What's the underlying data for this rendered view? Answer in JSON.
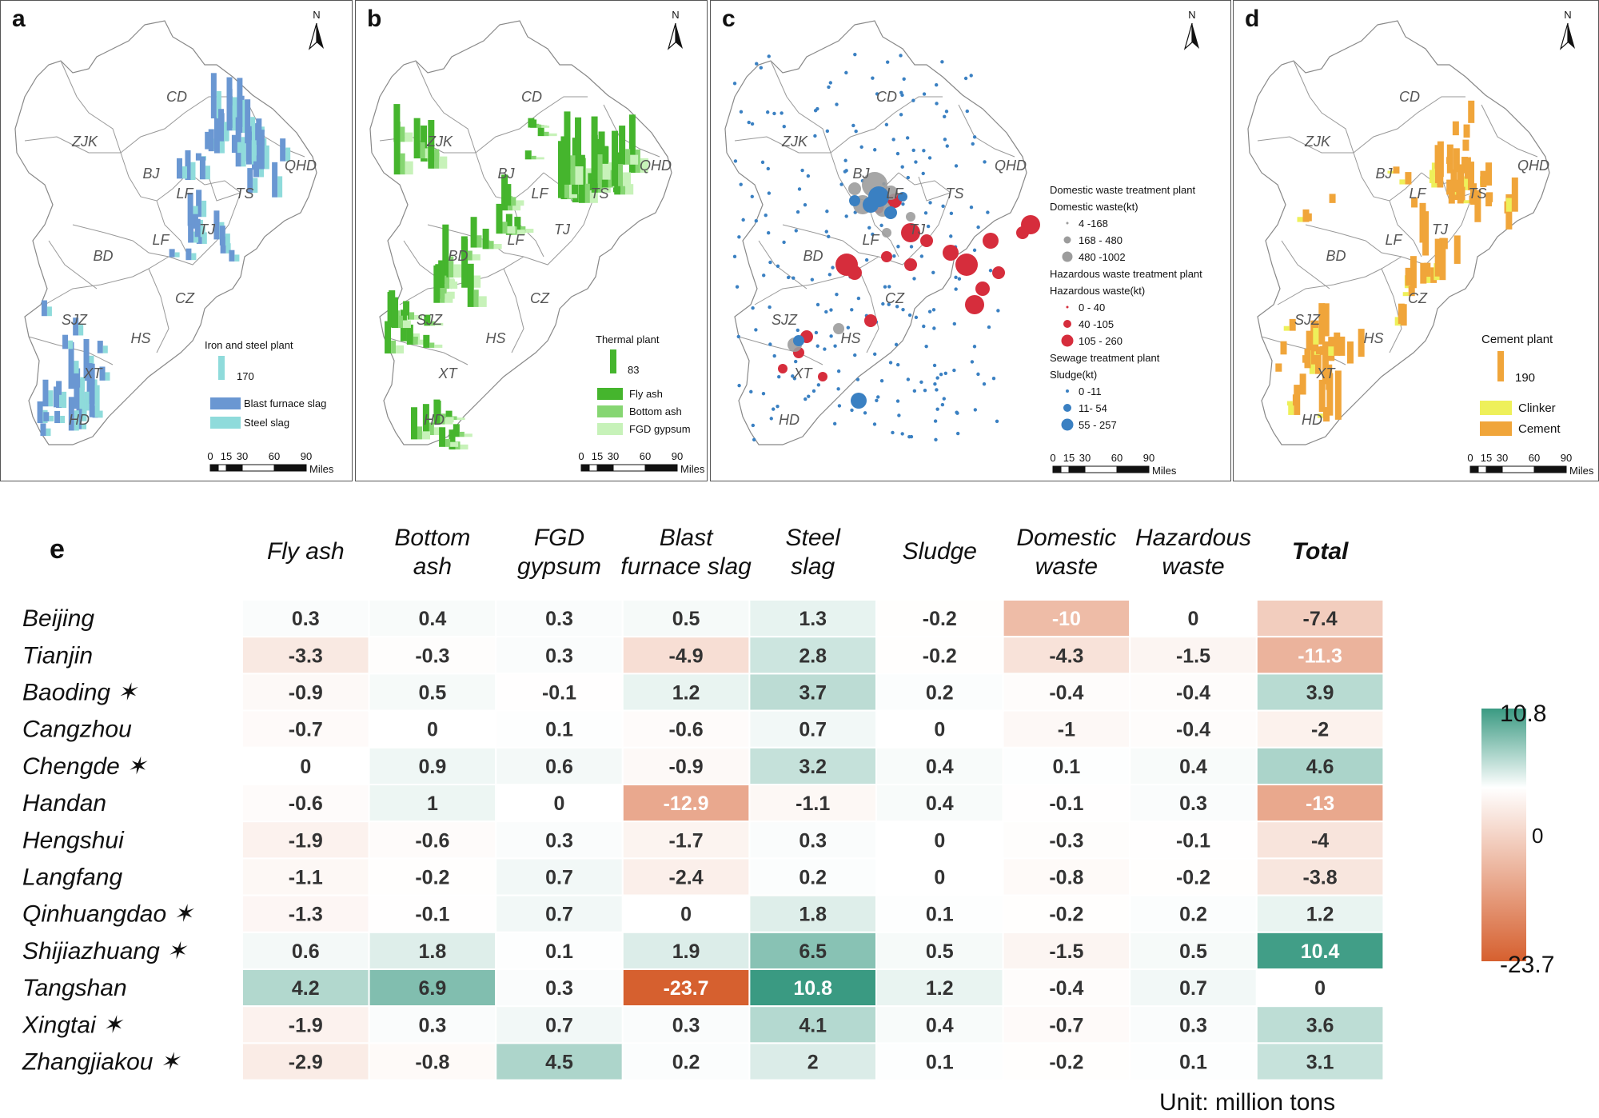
{
  "panels": [
    {
      "id": "a",
      "letter": "a",
      "north": "N",
      "cities": [
        "CD",
        "ZJK",
        "QHD",
        "BJ",
        "LF",
        "TS",
        "TJ",
        "LF",
        "BD",
        "CZ",
        "SJZ",
        "HS",
        "XT",
        "HD"
      ],
      "legend": {
        "title": "Iron and steel plant",
        "scale_value": "170",
        "items": [
          "Blast furnace slag",
          "Steel slag"
        ]
      },
      "scalebar": {
        "ticks": [
          "0",
          "15",
          "30",
          "60",
          "90"
        ],
        "unit": "Miles"
      }
    },
    {
      "id": "b",
      "letter": "b",
      "north": "N",
      "cities": [
        "CD",
        "ZJK",
        "QHD",
        "BJ",
        "LF",
        "TS",
        "TJ",
        "LF",
        "BD",
        "CZ",
        "SJZ",
        "HS",
        "XT",
        "HD"
      ],
      "legend": {
        "title": "Thermal plant",
        "scale_value": "83",
        "items": [
          "Fly ash",
          "Bottom ash",
          "FGD  gypsum"
        ]
      },
      "scalebar": {
        "ticks": [
          "0",
          "15",
          "30",
          "60",
          "90"
        ],
        "unit": "Miles"
      }
    },
    {
      "id": "c",
      "letter": "c",
      "north": "N",
      "cities": [
        "CD",
        "ZJK",
        "QHD",
        "BJ",
        "LF",
        "TS",
        "TJ",
        "LF",
        "BD",
        "CZ",
        "SJZ",
        "HS",
        "XT",
        "HD"
      ],
      "legend": {
        "groups": [
          {
            "title": "Domestic waste treatment plant",
            "subtitle": "Domestic waste(kt)",
            "items": [
              "4 -168",
              "168 - 480",
              "480 -1002"
            ]
          },
          {
            "title": "Hazardous waste treatment plant",
            "subtitle": "Hazardous waste(kt)",
            "items": [
              "0 - 40",
              "40 -105",
              "105 - 260"
            ]
          },
          {
            "title": "Sewage treatment plant",
            "subtitle": "Sludge(kt)",
            "items": [
              "0 -11",
              "11- 54",
              "55 - 257"
            ]
          }
        ]
      },
      "scalebar": {
        "ticks": [
          "0",
          "15",
          "30",
          "60",
          "90"
        ],
        "unit": "Miles"
      }
    },
    {
      "id": "d",
      "letter": "d",
      "north": "N",
      "cities": [
        "CD",
        "ZJK",
        "QHD",
        "BJ",
        "LF",
        "TS",
        "TJ",
        "LF",
        "BD",
        "CZ",
        "SJZ",
        "HS",
        "XT",
        "HD"
      ],
      "legend": {
        "title": "Cement plant",
        "scale_value": "190",
        "items": [
          "Clinker",
          "Cement"
        ]
      },
      "scalebar": {
        "ticks": [
          "0",
          "15",
          "30",
          "60",
          "90"
        ],
        "unit": "Miles"
      }
    }
  ],
  "chart_data": {
    "type": "heatmap",
    "panel_label": "e",
    "columns": [
      "Fly ash",
      "Bottom ash",
      "FGD gypsum",
      "Blast furnace slag",
      "Steel slag",
      "Sludge",
      "Domestic waste",
      "Hazardous waste",
      "Total"
    ],
    "column_lines": [
      [
        "Fly ash"
      ],
      [
        "Bottom",
        "ash"
      ],
      [
        "FGD",
        "gypsum"
      ],
      [
        "Blast",
        "furnace slag"
      ],
      [
        "Steel",
        "slag"
      ],
      [
        "Sludge"
      ],
      [
        "Domestic",
        "waste"
      ],
      [
        "Hazardous",
        "waste"
      ],
      [
        "Total"
      ]
    ],
    "rows": [
      "Beijing",
      "Tianjin",
      "Baoding ✶",
      "Cangzhou",
      "Chengde ✶",
      "Handan",
      "Hengshui",
      "Langfang",
      "Qinhuangdao ✶",
      "Shijiazhuang ✶",
      "Tangshan",
      "Xingtai ✶",
      "Zhangjiakou ✶"
    ],
    "values": [
      [
        0.3,
        0.4,
        0.3,
        0.5,
        1.3,
        -0.2,
        -10,
        0,
        -7.4
      ],
      [
        -3.3,
        -0.3,
        0.3,
        -4.9,
        2.8,
        -0.2,
        -4.3,
        -1.5,
        -11.3
      ],
      [
        -0.9,
        0.5,
        -0.1,
        1.2,
        3.7,
        0.2,
        -0.4,
        -0.4,
        3.9
      ],
      [
        -0.7,
        0,
        0.1,
        -0.6,
        0.7,
        0,
        -1,
        -0.4,
        -2
      ],
      [
        0,
        0.9,
        0.6,
        -0.9,
        3.2,
        0.4,
        0.1,
        0.4,
        4.6
      ],
      [
        -0.6,
        1,
        0,
        -12.9,
        -1.1,
        0.4,
        -0.1,
        0.3,
        -13
      ],
      [
        -1.9,
        -0.6,
        0.3,
        -1.7,
        0.3,
        0,
        -0.3,
        -0.1,
        -4
      ],
      [
        -1.1,
        -0.2,
        0.7,
        -2.4,
        0.2,
        0,
        -0.8,
        -0.2,
        -3.8
      ],
      [
        -1.3,
        -0.1,
        0.7,
        0,
        1.8,
        0.1,
        -0.2,
        0.2,
        1.2
      ],
      [
        0.6,
        1.8,
        0.1,
        1.9,
        6.5,
        0.5,
        -1.5,
        0.5,
        10.4
      ],
      [
        4.2,
        6.9,
        0.3,
        -23.7,
        10.8,
        1.2,
        -0.4,
        0.7,
        0
      ],
      [
        -1.9,
        0.3,
        0.7,
        0.3,
        4.1,
        0.4,
        -0.7,
        0.3,
        3.6
      ],
      [
        -2.9,
        -0.8,
        4.5,
        0.2,
        2,
        0.1,
        -0.2,
        0.1,
        3.1
      ]
    ],
    "colorbar": {
      "max": 10.8,
      "mid": 0,
      "min": -23.7,
      "max_color": "#3a9a82",
      "mid_color": "#ffffff",
      "min_color": "#d6602f"
    },
    "unit": "Unit: million tons"
  },
  "colors": {
    "blast": "#6a97d2",
    "steel": "#8fdbdb",
    "fly": "#45b52d",
    "bottom": "#86d672",
    "fgd": "#c7f2b9",
    "domestic": "#9c9c9c",
    "hazardous": "#d62d3c",
    "sludge": "#3a80c2",
    "clinker": "#eef05a",
    "cement": "#f0a53a"
  }
}
